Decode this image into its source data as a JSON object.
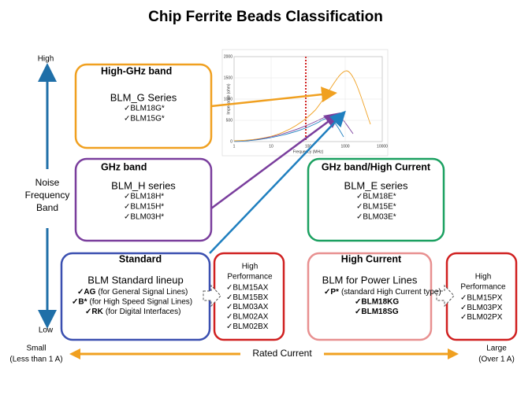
{
  "title": "Chip Ferrite Beads Classification",
  "axis": {
    "high": "High",
    "low": "Low",
    "label": [
      "Noise",
      "Frequency",
      "Band"
    ],
    "small": [
      "Small",
      "(Less than 1 A)"
    ],
    "large": [
      "Large",
      "(Over 1 A)"
    ],
    "rated": "Rated Current"
  },
  "inset": {
    "ylabel": "Impedance (ohm)",
    "xlabel": "Frequency (MHz)",
    "yticks": [
      "0",
      "500",
      "1000",
      "1500",
      "2000"
    ],
    "xticks": [
      "1",
      "10",
      "100",
      "1000",
      "10000"
    ]
  },
  "high_ghz": {
    "header": "High-GHz band",
    "series": "BLM_G Series",
    "items": [
      "✓BLM18G*",
      "✓BLM15G*"
    ]
  },
  "ghz": {
    "header": "GHz band",
    "series": "BLM_H series",
    "items": [
      "✓BLM18H*",
      "✓BLM15H*",
      "✓BLM03H*"
    ]
  },
  "ghz_high_current": {
    "header": "GHz band/High Current",
    "series": "BLM_E series",
    "items": [
      "✓BLM18E*",
      "✓BLM15E*",
      "✓BLM03E*"
    ]
  },
  "standard": {
    "header": "Standard",
    "series": "BLM Standard lineup",
    "items": [
      {
        "code": "✓AG",
        "text": "(for General Signal Lines)"
      },
      {
        "code": "✓B*",
        "text": "(for High Speed Signal Lines)"
      },
      {
        "code": "✓RK",
        "text": "(for Digital Interfaces)"
      }
    ]
  },
  "standard_hp": {
    "header": [
      "High",
      "Performance"
    ],
    "items": [
      "✓BLM15AX",
      "✓BLM15BX",
      "✓BLM03AX",
      "✓BLM02AX",
      "✓BLM02BX"
    ]
  },
  "high_current": {
    "header": "High Current",
    "series": "BLM for Power Lines",
    "items": [
      {
        "code": "✓P*",
        "text": "(standard High Current type)"
      },
      {
        "code": "✓BLM18KG",
        "text": ""
      },
      {
        "code": "✓BLM18SG",
        "text": ""
      }
    ]
  },
  "high_current_hp": {
    "header": [
      "High",
      "Performance"
    ],
    "items": [
      "✓BLM15PX",
      "✓BLM03PX",
      "✓BLM02PX"
    ]
  }
}
